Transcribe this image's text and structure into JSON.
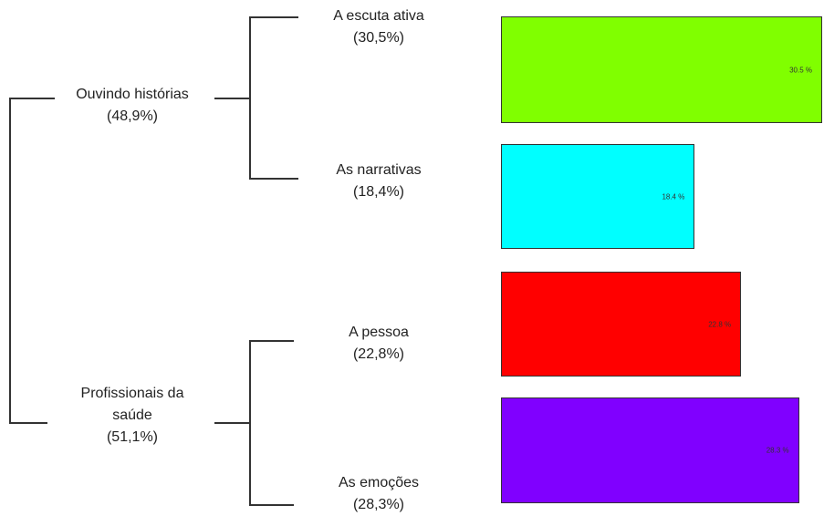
{
  "groups": [
    {
      "name": "Ouvindo histórias",
      "pct": "(48,9%)"
    },
    {
      "name_line1": "Profissionais da",
      "name_line2": "saúde",
      "pct": "(51,1%)"
    }
  ],
  "classes": [
    {
      "name": "A escuta ativa",
      "pct": "(30,5%)",
      "bar_label": "30.5 %",
      "value": 30.5,
      "color": "#80ff00"
    },
    {
      "name": "As narrativas",
      "pct": "(18,4%)",
      "bar_label": "18.4 %",
      "value": 18.4,
      "color": "#00ffff"
    },
    {
      "name": "A pessoa",
      "pct": "(22,8%)",
      "bar_label": "22.8 %",
      "value": 22.8,
      "color": "#ff0000"
    },
    {
      "name": "As emoções",
      "pct": "(28,3%)",
      "bar_label": "28.3 %",
      "value": 28.3,
      "color": "#8000ff"
    }
  ]
}
